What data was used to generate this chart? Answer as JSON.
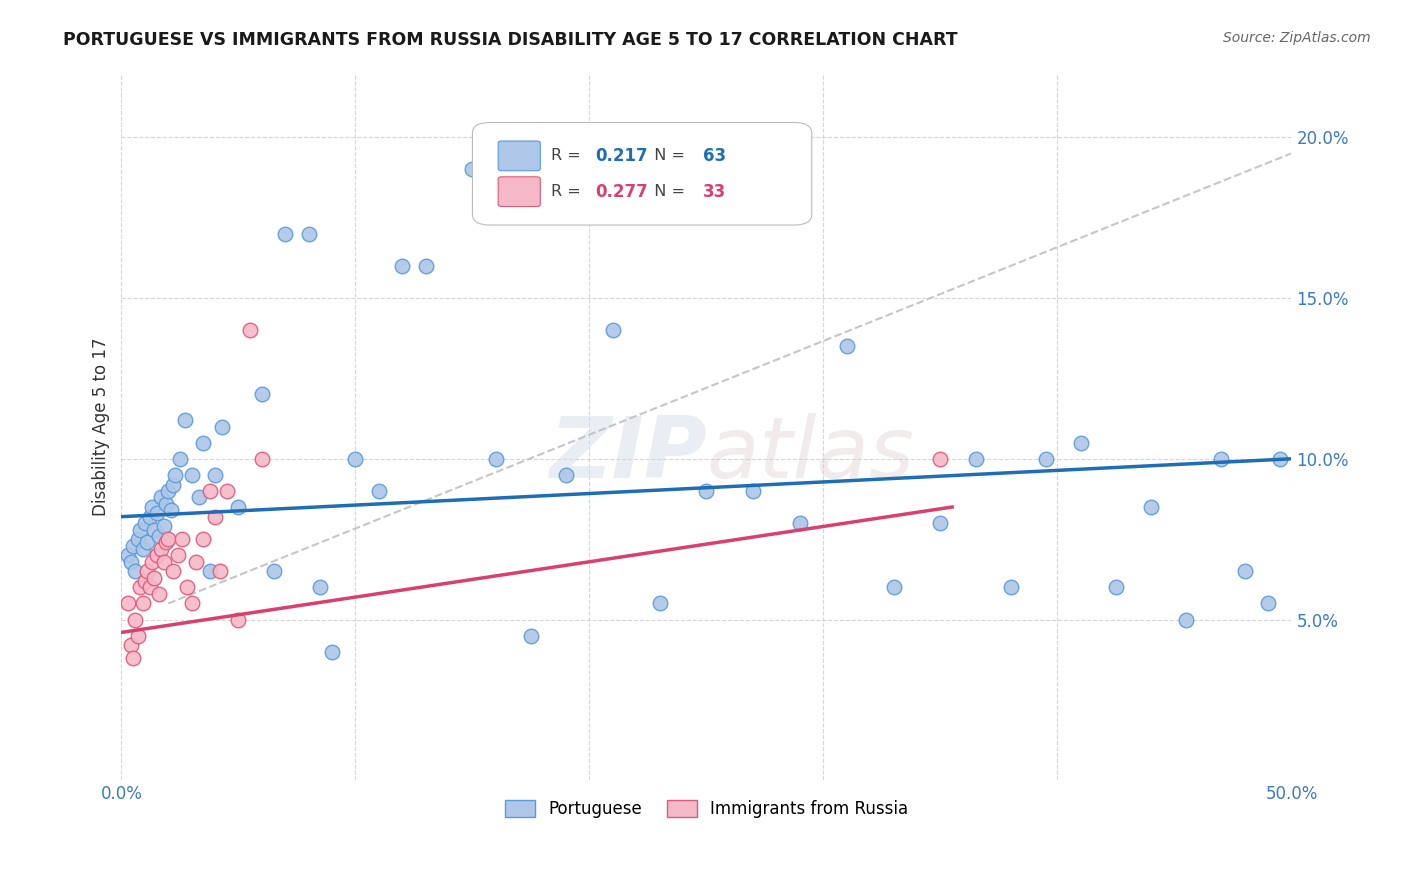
{
  "title": "PORTUGUESE VS IMMIGRANTS FROM RUSSIA DISABILITY AGE 5 TO 17 CORRELATION CHART",
  "source": "Source: ZipAtlas.com",
  "ylabel": "Disability Age 5 to 17",
  "xlim": [
    0.0,
    0.5
  ],
  "ylim": [
    0.0,
    0.22
  ],
  "xticks": [
    0.0,
    0.1,
    0.2,
    0.3,
    0.4,
    0.5
  ],
  "yticks": [
    0.05,
    0.1,
    0.15,
    0.2
  ],
  "xticklabels": [
    "0.0%",
    "",
    "",
    "",
    "",
    "50.0%"
  ],
  "yticklabels": [
    "5.0%",
    "10.0%",
    "15.0%",
    "20.0%"
  ],
  "background_color": "#ffffff",
  "grid_color": "#cccccc",
  "portuguese_color": "#aec6e8",
  "portuguese_edge_color": "#5b9bd5",
  "russia_color": "#f5b8c8",
  "russia_edge_color": "#e05878",
  "blue_line_color": "#1f6eb5",
  "pink_line_color": "#d94070",
  "dashed_line_color": "#c0c0c0",
  "R_portuguese": 0.217,
  "N_portuguese": 63,
  "R_russia": 0.277,
  "N_russia": 33,
  "portuguese_x": [
    0.003,
    0.004,
    0.005,
    0.006,
    0.007,
    0.008,
    0.009,
    0.01,
    0.011,
    0.012,
    0.013,
    0.014,
    0.015,
    0.016,
    0.017,
    0.018,
    0.019,
    0.02,
    0.021,
    0.022,
    0.023,
    0.025,
    0.027,
    0.03,
    0.033,
    0.035,
    0.038,
    0.04,
    0.043,
    0.05,
    0.06,
    0.065,
    0.07,
    0.08,
    0.085,
    0.09,
    0.1,
    0.11,
    0.12,
    0.13,
    0.15,
    0.16,
    0.175,
    0.19,
    0.21,
    0.23,
    0.25,
    0.27,
    0.29,
    0.31,
    0.33,
    0.35,
    0.365,
    0.38,
    0.395,
    0.41,
    0.425,
    0.44,
    0.455,
    0.47,
    0.48,
    0.49,
    0.495
  ],
  "portuguese_y": [
    0.07,
    0.068,
    0.073,
    0.065,
    0.075,
    0.078,
    0.072,
    0.08,
    0.074,
    0.082,
    0.085,
    0.078,
    0.083,
    0.076,
    0.088,
    0.079,
    0.086,
    0.09,
    0.084,
    0.092,
    0.095,
    0.1,
    0.112,
    0.095,
    0.088,
    0.105,
    0.065,
    0.095,
    0.11,
    0.085,
    0.12,
    0.065,
    0.17,
    0.17,
    0.06,
    0.04,
    0.1,
    0.09,
    0.16,
    0.16,
    0.19,
    0.1,
    0.045,
    0.095,
    0.14,
    0.055,
    0.09,
    0.09,
    0.08,
    0.135,
    0.06,
    0.08,
    0.1,
    0.06,
    0.1,
    0.105,
    0.06,
    0.085,
    0.05,
    0.1,
    0.065,
    0.055,
    0.1
  ],
  "russia_x": [
    0.003,
    0.004,
    0.005,
    0.006,
    0.007,
    0.008,
    0.009,
    0.01,
    0.011,
    0.012,
    0.013,
    0.014,
    0.015,
    0.016,
    0.017,
    0.018,
    0.019,
    0.02,
    0.022,
    0.024,
    0.026,
    0.028,
    0.03,
    0.032,
    0.035,
    0.038,
    0.04,
    0.042,
    0.045,
    0.05,
    0.055,
    0.06,
    0.35
  ],
  "russia_y": [
    0.055,
    0.042,
    0.038,
    0.05,
    0.045,
    0.06,
    0.055,
    0.062,
    0.065,
    0.06,
    0.068,
    0.063,
    0.07,
    0.058,
    0.072,
    0.068,
    0.074,
    0.075,
    0.065,
    0.07,
    0.075,
    0.06,
    0.055,
    0.068,
    0.075,
    0.09,
    0.082,
    0.065,
    0.09,
    0.05,
    0.14,
    0.1,
    0.1
  ],
  "watermark_zip": "ZIP",
  "watermark_atlas": "atlas",
  "legend_label_portuguese": "Portuguese",
  "legend_label_russia": "Immigrants from Russia"
}
